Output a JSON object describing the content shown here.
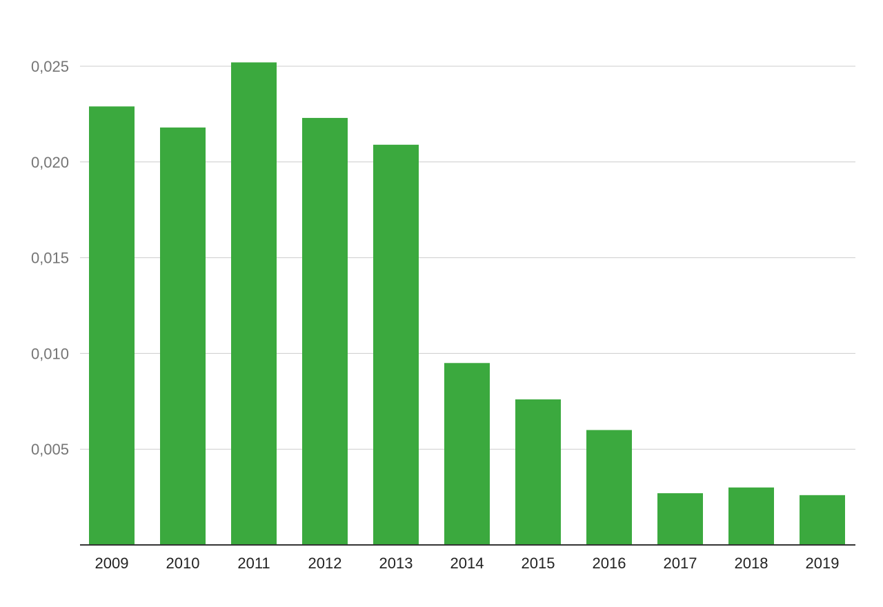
{
  "chart_data": {
    "type": "bar",
    "title": "",
    "xlabel": "",
    "ylabel": "",
    "categories": [
      "2009",
      "2010",
      "2011",
      "2012",
      "2013",
      "2014",
      "2015",
      "2016",
      "2017",
      "2018",
      "2019"
    ],
    "values": [
      0.0229,
      0.0218,
      0.0252,
      0.0223,
      0.0209,
      0.0095,
      0.0076,
      0.006,
      0.0027,
      0.003,
      0.0026
    ],
    "ylim": [
      0,
      0.025
    ],
    "y_ticks": [
      0.005,
      0.01,
      0.015,
      0.02,
      0.025
    ],
    "y_tick_labels": [
      "0,005",
      "0,010",
      "0,015",
      "0,020",
      "0,025"
    ],
    "grid": true,
    "legend": "none",
    "bar_color": "#3ba93e"
  }
}
